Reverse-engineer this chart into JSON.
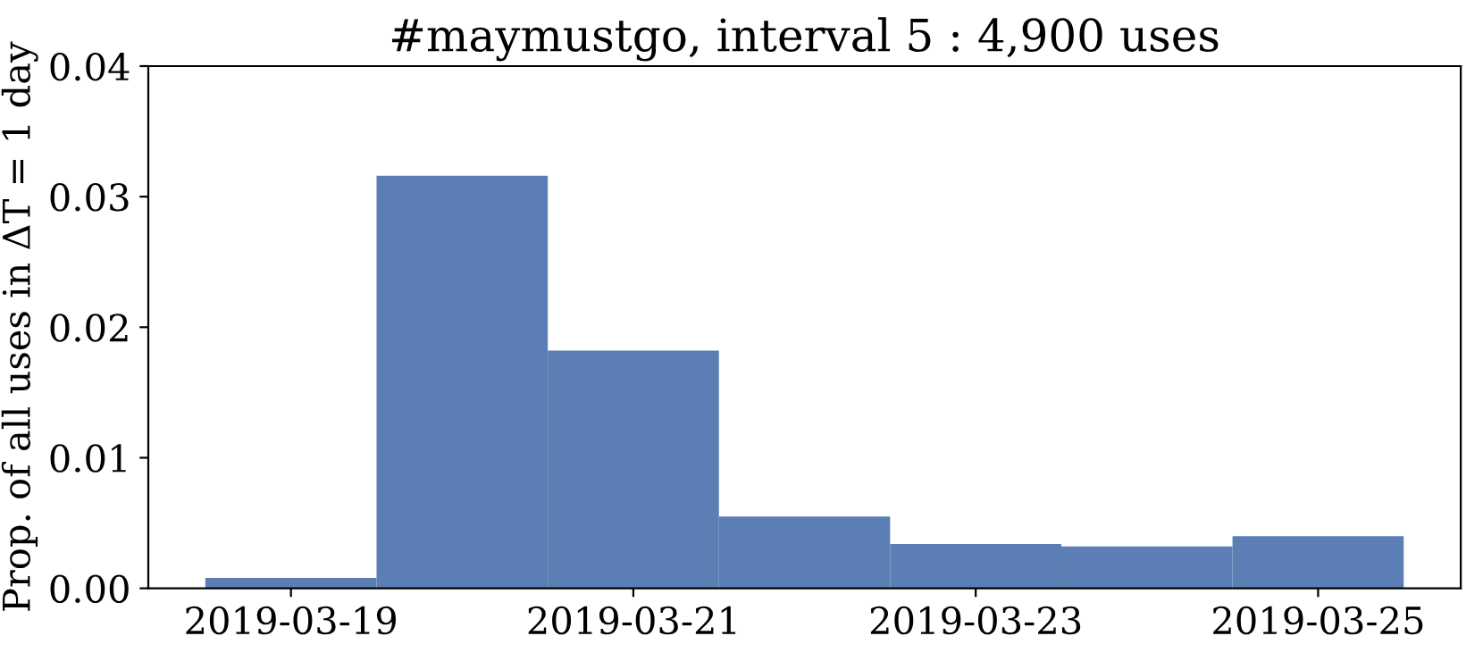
{
  "chart_data": {
    "type": "histogram",
    "title": "#maymustgo, interval 5 : 4,900 uses",
    "ylabel": "Prop. of all uses in ΔT = 1 day",
    "bins": [
      "2019-03-18T12:00",
      "2019-03-19T12:00",
      "2019-03-20T12:00",
      "2019-03-21T12:00",
      "2019-03-22T12:00",
      "2019-03-23T12:00",
      "2019-03-24T12:00",
      "2019-03-25T12:00"
    ],
    "values": [
      0.0008,
      0.0316,
      0.0182,
      0.0055,
      0.0034,
      0.0032,
      0.004
    ],
    "color": "#5b7fb4",
    "xlim": [
      "2019-03-18T04:00",
      "2019-03-25T20:00"
    ],
    "xticks": [
      "2019-03-19",
      "2019-03-21",
      "2019-03-23",
      "2019-03-25"
    ],
    "ylim": [
      0,
      0.04
    ],
    "yticks": [
      {
        "value": 0,
        "label": "0.00"
      },
      {
        "value": 0.01,
        "label": "0.01"
      },
      {
        "value": 0.02,
        "label": "0.02"
      },
      {
        "value": 0.03,
        "label": "0.03"
      },
      {
        "value": 0.04,
        "label": "0.04"
      }
    ],
    "grid": false,
    "legend": false
  }
}
